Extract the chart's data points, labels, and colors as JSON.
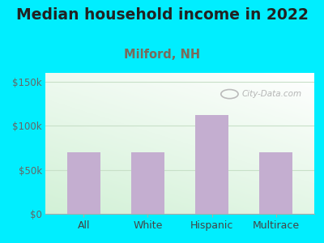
{
  "title": "Median household income in 2022",
  "subtitle": "Milford, NH",
  "categories": [
    "All",
    "White",
    "Hispanic",
    "Multirace"
  ],
  "values": [
    70000,
    70000,
    112000,
    70000
  ],
  "bar_color": "#c4aed0",
  "title_fontsize": 13.5,
  "title_color": "#222222",
  "subtitle_fontsize": 10.5,
  "subtitle_color": "#7a6a5a",
  "yticks": [
    0,
    50000,
    100000,
    150000
  ],
  "ytick_labels": [
    "$0",
    "$50k",
    "$100k",
    "$150k"
  ],
  "ylim": [
    0,
    160000
  ],
  "background_color": "#00eeff",
  "watermark_text": "City-Data.com",
  "tick_color": "#666666",
  "xlabel_color": "#444444",
  "grid_color": "#c8e0c8",
  "plot_bg_color_top": "#eafaea",
  "plot_bg_color_bottom": "#c8e8d0"
}
